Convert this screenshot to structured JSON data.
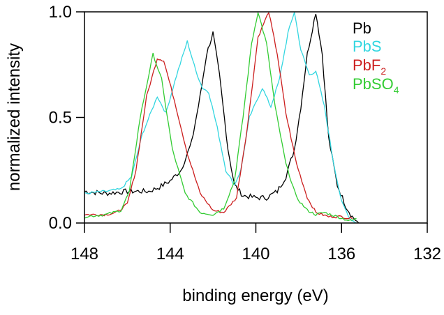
{
  "chart_data": {
    "type": "line",
    "title": "",
    "xlabel": "binding energy (eV)",
    "ylabel": "normalized intensity",
    "xlim": [
      148,
      132
    ],
    "ylim": [
      0,
      1
    ],
    "x_reversed": true,
    "xticks": [
      "148",
      "144",
      "140",
      "136",
      "132"
    ],
    "xtick_values": [
      148,
      144,
      140,
      136,
      132
    ],
    "yticks": [
      "0.0",
      "0.5",
      "1.0"
    ],
    "ytick_values": [
      0,
      0.5,
      1.0
    ],
    "grid": false,
    "legend_placement": "top-right",
    "series": [
      {
        "name": "Pb",
        "label_main": "Pb",
        "label_sub": "",
        "color": "#000000",
        "x": [
          148,
          147,
          146,
          145,
          144.5,
          144,
          143.5,
          143,
          142.6,
          142.3,
          142,
          141.7,
          141.3,
          141,
          140.6,
          140,
          139.5,
          139,
          138.6,
          138.2,
          137.9,
          137.6,
          137.2,
          136.9,
          136.6,
          136.2,
          135.8,
          135.5,
          135.2
        ],
        "y": [
          0.15,
          0.14,
          0.15,
          0.15,
          0.17,
          0.2,
          0.25,
          0.38,
          0.6,
          0.8,
          0.9,
          0.7,
          0.35,
          0.18,
          0.13,
          0.12,
          0.12,
          0.15,
          0.22,
          0.35,
          0.55,
          0.8,
          1.0,
          0.8,
          0.4,
          0.18,
          0.08,
          0.03,
          0.0
        ]
      },
      {
        "name": "PbS",
        "label_main": "PbS",
        "label_sub": "",
        "color": "#33d6e0",
        "x": [
          148,
          147,
          146.3,
          145.8,
          145.3,
          144.6,
          144.2,
          143.7,
          143.2,
          142.8,
          142.5,
          142.2,
          141.8,
          141.4,
          141,
          140.7,
          140.3,
          139.7,
          139.3,
          138.9,
          138.5,
          138.2,
          137.9,
          137.5,
          137.2,
          136.8,
          136.4,
          136,
          135.6,
          135.3
        ],
        "y": [
          0.14,
          0.15,
          0.16,
          0.22,
          0.42,
          0.6,
          0.52,
          0.7,
          0.86,
          0.72,
          0.64,
          0.62,
          0.45,
          0.25,
          0.18,
          0.25,
          0.5,
          0.64,
          0.55,
          0.68,
          0.9,
          1.0,
          0.82,
          0.7,
          0.72,
          0.55,
          0.3,
          0.1,
          0.02,
          0.0
        ]
      },
      {
        "name": "PbF2",
        "label_main": "PbF",
        "label_sub": "2",
        "color": "#cc1f1f",
        "x": [
          148,
          147,
          146.5,
          146,
          145.6,
          145.1,
          144.6,
          144.3,
          143.8,
          143.2,
          142.6,
          142,
          141.5,
          140.9,
          140.4,
          139.9,
          139.4,
          139,
          138.6,
          138.1,
          137.6,
          137.2,
          136.6,
          136,
          135.5
        ],
        "y": [
          0.04,
          0.04,
          0.05,
          0.09,
          0.25,
          0.6,
          0.78,
          0.77,
          0.58,
          0.33,
          0.14,
          0.06,
          0.05,
          0.12,
          0.45,
          0.88,
          1.0,
          0.8,
          0.52,
          0.28,
          0.12,
          0.05,
          0.03,
          0.03,
          0.02
        ]
      },
      {
        "name": "PbSO4",
        "label_main": "PbSO",
        "label_sub": "4",
        "color": "#33cc33",
        "x": [
          148,
          147,
          146.3,
          145.9,
          145.4,
          144.8,
          144.4,
          143.9,
          143.3,
          142.6,
          142,
          141.5,
          141,
          140.6,
          140.2,
          139.9,
          139.5,
          139.1,
          138.6,
          138.1,
          137.6,
          137.2,
          136.8,
          136.2,
          135.6,
          135.3
        ],
        "y": [
          0.03,
          0.04,
          0.06,
          0.15,
          0.5,
          0.8,
          0.68,
          0.35,
          0.14,
          0.05,
          0.04,
          0.07,
          0.2,
          0.5,
          0.85,
          1.0,
          0.85,
          0.55,
          0.28,
          0.12,
          0.06,
          0.04,
          0.05,
          0.03,
          0.01,
          0.02
        ]
      }
    ]
  }
}
